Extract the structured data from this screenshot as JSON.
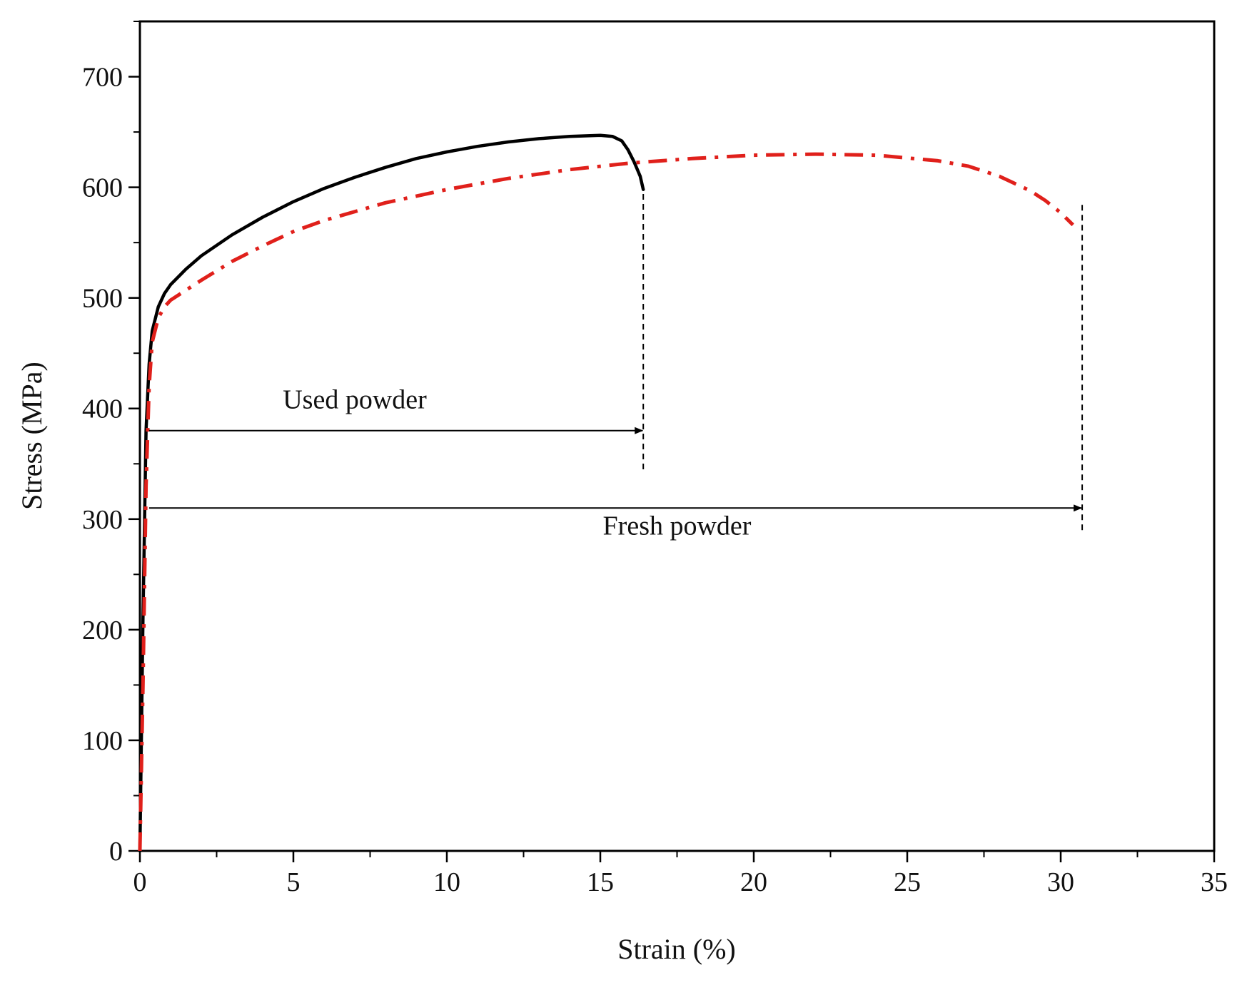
{
  "chart_data": {
    "type": "line",
    "title": "",
    "xlabel": "Strain (%)",
    "ylabel": "Stress (MPa)",
    "xlim": [
      0,
      35
    ],
    "ylim": [
      0,
      750
    ],
    "x_ticks": [
      0,
      5,
      10,
      15,
      20,
      25,
      30,
      35
    ],
    "y_ticks": [
      0,
      100,
      200,
      300,
      400,
      500,
      600,
      700
    ],
    "x_minor_step": 2.5,
    "y_minor_step": 50,
    "grid": false,
    "legend": "none",
    "series": [
      {
        "color": "#000000",
        "style": "solid",
        "x": [
          0,
          0.1,
          0.2,
          0.3,
          0.4,
          0.6,
          0.8,
          1.0,
          1.5,
          2,
          3,
          4,
          5,
          6,
          7,
          8,
          9,
          10,
          11,
          12,
          13,
          14,
          15,
          15.4,
          15.7,
          15.9,
          16.1,
          16.3,
          16.4
        ],
        "y": [
          0,
          210,
          380,
          440,
          470,
          492,
          504,
          512,
          526,
          538,
          557,
          573,
          587,
          599,
          609,
          618,
          626,
          632,
          637,
          641,
          644,
          646,
          647,
          646,
          642,
          634,
          623,
          610,
          598
        ]
      },
      {
        "color": "#e0201b",
        "style": "dash-dot",
        "x": [
          0,
          0.1,
          0.2,
          0.3,
          0.4,
          0.6,
          0.8,
          1.0,
          2,
          3,
          4,
          5,
          6,
          8,
          10,
          12,
          14,
          16,
          18,
          20,
          22,
          24,
          26,
          27,
          28,
          29,
          29.5,
          30,
          30.4
        ],
        "y": [
          0,
          150,
          330,
          420,
          460,
          482,
          492,
          498,
          516,
          533,
          547,
          560,
          570,
          586,
          598,
          608,
          616,
          622,
          626,
          629,
          630,
          629,
          624,
          619,
          610,
          597,
          588,
          577,
          566
        ]
      }
    ],
    "annotations": [
      {
        "text": "Used powder",
        "arrow_from": [
          0.3,
          380
        ],
        "arrow_to": [
          16.4,
          380
        ],
        "label_at": [
          7,
          400
        ]
      },
      {
        "text": "Fresh powder",
        "arrow_from": [
          0.3,
          310
        ],
        "arrow_to": [
          30.7,
          310
        ],
        "label_at": [
          17.5,
          286
        ]
      }
    ],
    "reference_lines": [
      {
        "x": 16.4,
        "y_from": 345,
        "y_to": 600
      },
      {
        "x": 30.7,
        "y_from": 290,
        "y_to": 588
      }
    ]
  }
}
